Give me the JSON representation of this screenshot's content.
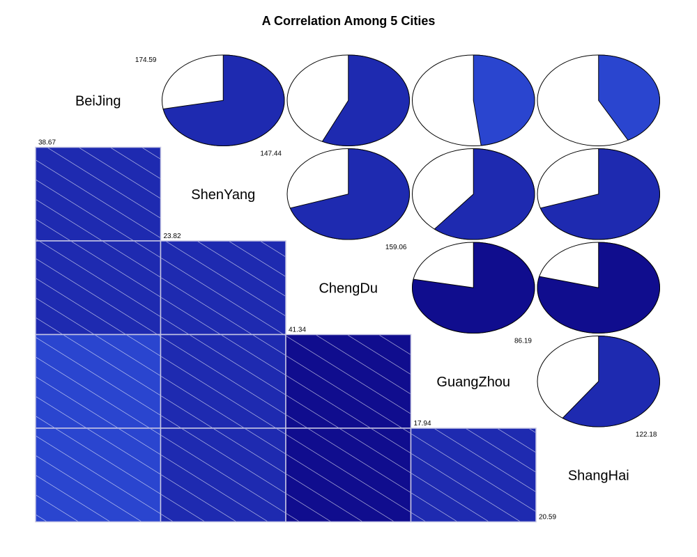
{
  "chart_data": {
    "type": "corrgram",
    "title": "A Correlation Among 5 Cities",
    "variables": [
      "BeiJing",
      "ShenYang",
      "ChengDu",
      "GuangZhou",
      "ShangHai"
    ],
    "range_labels": [
      {
        "min": "38.67",
        "max": "174.59"
      },
      {
        "min": "23.82",
        "max": "147.44"
      },
      {
        "min": "41.34",
        "max": "159.06"
      },
      {
        "min": "17.94",
        "max": "86.19"
      },
      {
        "min": "20.59",
        "max": "122.18"
      }
    ],
    "lower_panel": "shade",
    "upper_panel": "pie",
    "correlations": [
      [
        1.0,
        0.72,
        0.57,
        0.48,
        0.42
      ],
      [
        0.72,
        1.0,
        0.7,
        0.61,
        0.7
      ],
      [
        0.57,
        0.7,
        1.0,
        0.78,
        0.79
      ],
      [
        0.48,
        0.61,
        0.78,
        1.0,
        0.6
      ],
      [
        0.42,
        0.7,
        0.79,
        0.6,
        1.0
      ]
    ],
    "colors": {
      "strongest": "#100d8e",
      "strong": "#1e2ab0",
      "moderate": "#2a45cf",
      "cell_border": "#c7c7e4",
      "hatch": "#ffffff"
    }
  }
}
